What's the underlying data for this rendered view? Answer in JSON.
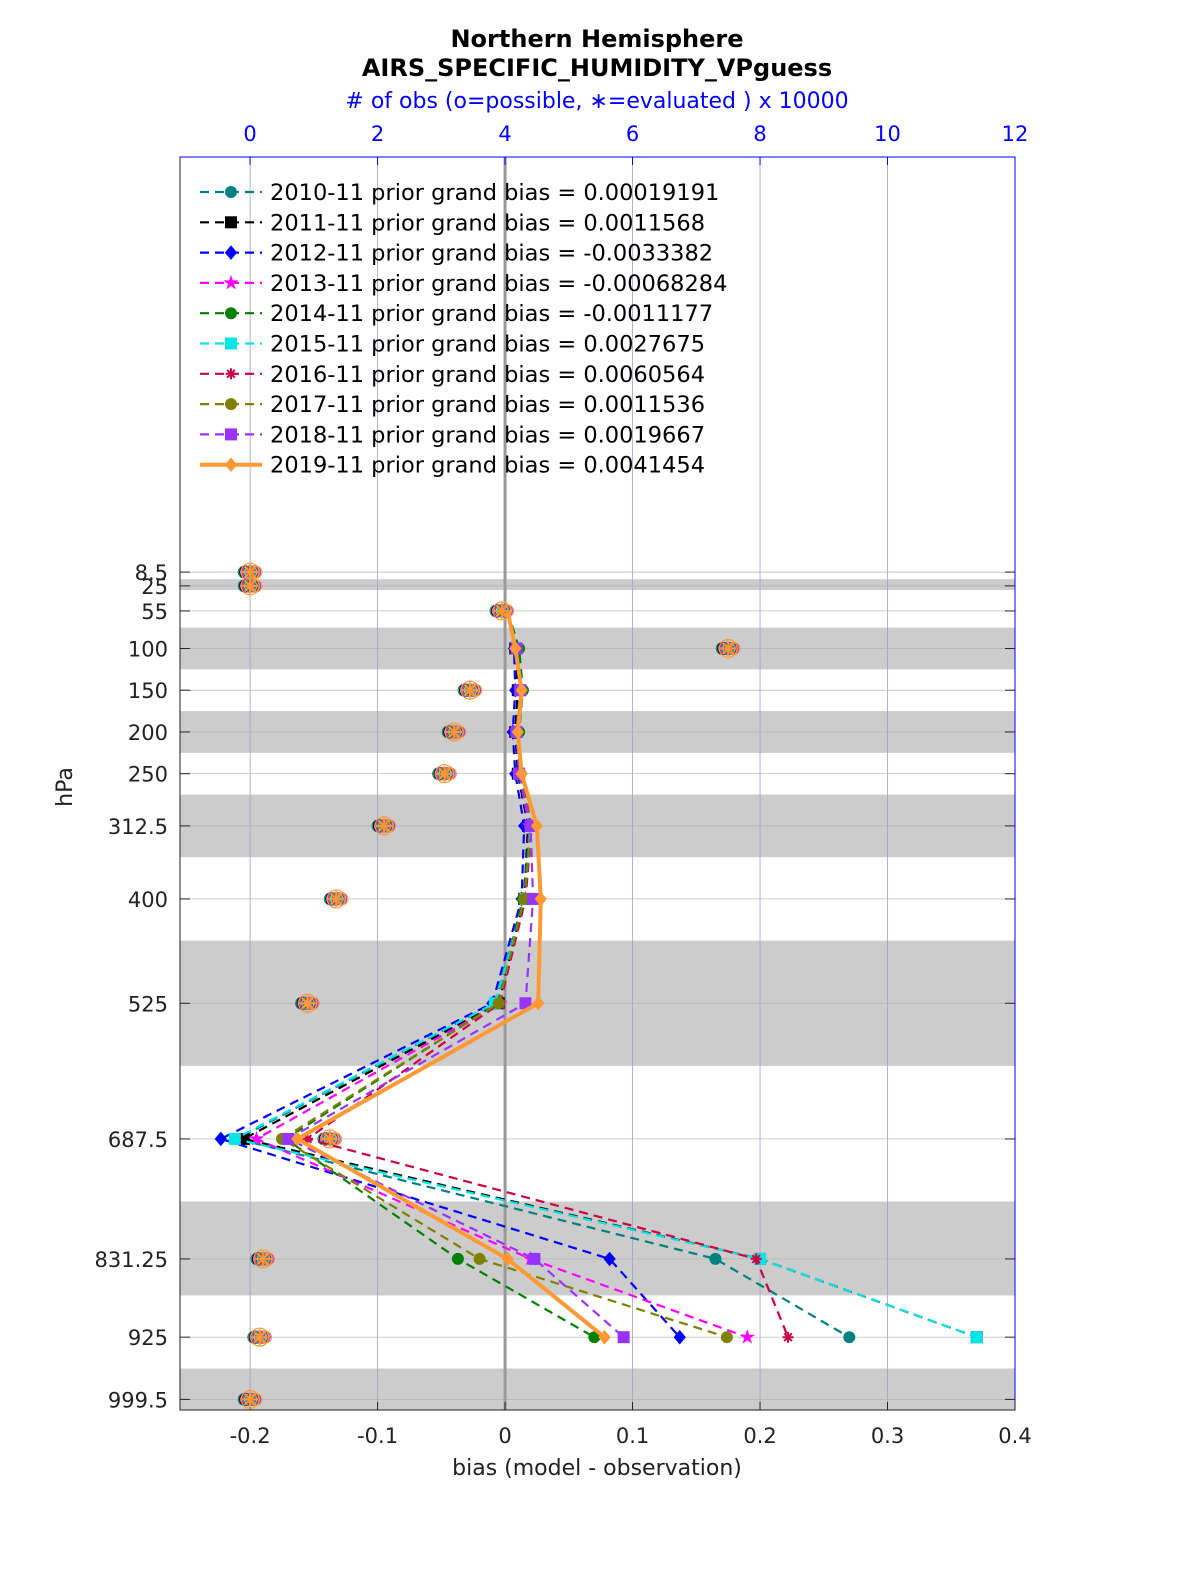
{
  "chart_data": {
    "type": "line",
    "title": "Northern Hemisphere",
    "subtitle": "AIRS_SPECIFIC_HUMIDITY_VPguess",
    "top_axis_label": "# of obs (o=possible, ∗=evaluated ) x 10000",
    "xlabel": "bias (model - observation)",
    "ylabel": "hPa",
    "xlim": [
      -0.255,
      0.4
    ],
    "x_ticks": [
      "-0.2",
      "-0.1",
      "0",
      "0.1",
      "0.2",
      "0.3",
      "0.4"
    ],
    "x_tick_values": [
      -0.2,
      -0.1,
      0,
      0.1,
      0.2,
      0.3,
      0.4
    ],
    "top_xlim": [
      -1.1,
      12
    ],
    "top_ticks": [
      "0",
      "2",
      "4",
      "6",
      "8",
      "10",
      "12"
    ],
    "top_tick_values": [
      0,
      2,
      4,
      6,
      8,
      10,
      12
    ],
    "ylim_hPa": [
      0,
      1025
    ],
    "y_scale": "linear, inverted",
    "y_ticks": [
      "8.5",
      "25",
      "55",
      "100",
      "150",
      "200",
      "250",
      "312.5",
      "400",
      "525",
      "687.5",
      "831.25",
      "925",
      "999.5"
    ],
    "y_tick_values": [
      8.5,
      25,
      55,
      100,
      150,
      200,
      250,
      312.5,
      400,
      525,
      687.5,
      831.25,
      925,
      999.5
    ],
    "layer_bands_hPa": [
      [
        17,
        30
      ],
      [
        75,
        125
      ],
      [
        175,
        225
      ],
      [
        275,
        350
      ],
      [
        450,
        600
      ],
      [
        762.5,
        875
      ],
      [
        962.5,
        1025
      ]
    ],
    "grid": true,
    "legend_position": "top-left",
    "series": [
      {
        "name": "2010-11 prior grand bias = 0.00019191",
        "color": "#008080",
        "marker": "circle",
        "style": "dashed",
        "points": [
          [
            0.002,
            55
          ],
          [
            0.01,
            100
          ],
          [
            0.013,
            150
          ],
          [
            0.01,
            200
          ],
          [
            0.012,
            250
          ],
          [
            0.018,
            312.5
          ],
          [
            0.015,
            400
          ],
          [
            -0.008,
            525
          ],
          [
            -0.21,
            687.5
          ],
          [
            0.165,
            831.25
          ],
          [
            0.27,
            925
          ]
        ]
      },
      {
        "name": "2011-11 prior grand bias = 0.0011568",
        "color": "#000000",
        "marker": "square",
        "style": "dashed",
        "points": [
          [
            0.002,
            55
          ],
          [
            0.008,
            100
          ],
          [
            0.01,
            150
          ],
          [
            0.008,
            200
          ],
          [
            0.01,
            250
          ],
          [
            0.018,
            312.5
          ],
          [
            0.015,
            400
          ],
          [
            -0.005,
            525
          ],
          [
            -0.205,
            687.5
          ],
          [
            0.2,
            831.25
          ],
          [
            0.37,
            925
          ]
        ]
      },
      {
        "name": "2012-11 prior grand bias = -0.0033382",
        "color": "#0000ff",
        "marker": "diamond",
        "style": "dashed",
        "points": [
          [
            0.002,
            55
          ],
          [
            0.007,
            100
          ],
          [
            0.008,
            150
          ],
          [
            0.006,
            200
          ],
          [
            0.008,
            250
          ],
          [
            0.015,
            312.5
          ],
          [
            0.013,
            400
          ],
          [
            -0.01,
            525
          ],
          [
            -0.223,
            687.5
          ],
          [
            0.082,
            831.25
          ],
          [
            0.137,
            925
          ]
        ]
      },
      {
        "name": "2013-11 prior grand bias = -0.00068284",
        "color": "#ff00ff",
        "marker": "star",
        "style": "dashed",
        "points": [
          [
            0.002,
            55
          ],
          [
            0.009,
            100
          ],
          [
            0.012,
            150
          ],
          [
            0.009,
            200
          ],
          [
            0.011,
            250
          ],
          [
            0.019,
            312.5
          ],
          [
            0.016,
            400
          ],
          [
            -0.004,
            525
          ],
          [
            -0.195,
            687.5
          ],
          [
            0.02,
            831.25
          ],
          [
            0.19,
            925
          ]
        ]
      },
      {
        "name": "2014-11 prior grand bias = -0.0011177",
        "color": "#008000",
        "marker": "hexagon",
        "style": "dashed",
        "points": [
          [
            0.002,
            55
          ],
          [
            0.011,
            100
          ],
          [
            0.014,
            150
          ],
          [
            0.011,
            200
          ],
          [
            0.012,
            250
          ],
          [
            0.02,
            312.5
          ],
          [
            0.014,
            400
          ],
          [
            -0.006,
            525
          ],
          [
            -0.172,
            687.5
          ],
          [
            -0.037,
            831.25
          ],
          [
            0.07,
            925
          ]
        ]
      },
      {
        "name": "2015-11 prior grand bias = 0.0027675",
        "color": "#00e5e5",
        "marker": "square",
        "style": "dashed",
        "points": [
          [
            0.002,
            55
          ],
          [
            0.009,
            100
          ],
          [
            0.012,
            150
          ],
          [
            0.009,
            200
          ],
          [
            0.011,
            250
          ],
          [
            0.02,
            312.5
          ],
          [
            0.016,
            400
          ],
          [
            -0.008,
            525
          ],
          [
            -0.212,
            687.5
          ],
          [
            0.2,
            831.25
          ],
          [
            0.37,
            925
          ]
        ]
      },
      {
        "name": "2016-11 prior grand bias = 0.0060564",
        "color": "#cc0044",
        "marker": "asterisk",
        "style": "dashed",
        "points": [
          [
            0.002,
            55
          ],
          [
            0.009,
            100
          ],
          [
            0.012,
            150
          ],
          [
            0.01,
            200
          ],
          [
            0.012,
            250
          ],
          [
            0.021,
            312.5
          ],
          [
            0.016,
            400
          ],
          [
            -0.004,
            525
          ],
          [
            -0.155,
            687.5
          ],
          [
            0.197,
            831.25
          ],
          [
            0.222,
            925
          ]
        ]
      },
      {
        "name": "2017-11 prior grand bias = 0.0011536",
        "color": "#808000",
        "marker": "circle",
        "style": "dashed",
        "points": [
          [
            0.002,
            55
          ],
          [
            0.009,
            100
          ],
          [
            0.012,
            150
          ],
          [
            0.009,
            200
          ],
          [
            0.011,
            250
          ],
          [
            0.021,
            312.5
          ],
          [
            0.015,
            400
          ],
          [
            -0.005,
            525
          ],
          [
            -0.175,
            687.5
          ],
          [
            -0.02,
            831.25
          ],
          [
            0.174,
            925
          ]
        ]
      },
      {
        "name": "2018-11 prior grand bias = 0.0019667",
        "color": "#9933ff",
        "marker": "square",
        "style": "dashed",
        "points": [
          [
            0.002,
            55
          ],
          [
            0.009,
            100
          ],
          [
            0.012,
            150
          ],
          [
            0.009,
            200
          ],
          [
            0.011,
            250
          ],
          [
            0.02,
            312.5
          ],
          [
            0.022,
            400
          ],
          [
            0.016,
            525
          ],
          [
            -0.17,
            687.5
          ],
          [
            0.023,
            831.25
          ],
          [
            0.093,
            925
          ]
        ]
      },
      {
        "name": "2019-11 prior grand bias = 0.0041454",
        "color": "#ff9933",
        "marker": "diamond",
        "style": "solid",
        "points": [
          [
            0.002,
            55
          ],
          [
            0.008,
            100
          ],
          [
            0.013,
            150
          ],
          [
            0.01,
            200
          ],
          [
            0.013,
            250
          ],
          [
            0.025,
            312.5
          ],
          [
            0.028,
            400
          ],
          [
            0.026,
            525
          ],
          [
            -0.163,
            687.5
          ],
          [
            0.002,
            831.25
          ],
          [
            0.078,
            925
          ]
        ]
      }
    ],
    "obs_counts": {
      "description_levels_hPa": [
        8.5,
        25,
        55,
        100,
        150,
        200,
        250,
        312.5,
        400,
        525,
        687.5,
        831.25,
        925,
        999.5
      ],
      "possible": [
        0.0,
        0.0,
        3.95,
        7.5,
        3.45,
        3.2,
        3.05,
        2.1,
        1.35,
        0.9,
        1.25,
        0.2,
        0.15,
        0.0
      ]
    }
  }
}
